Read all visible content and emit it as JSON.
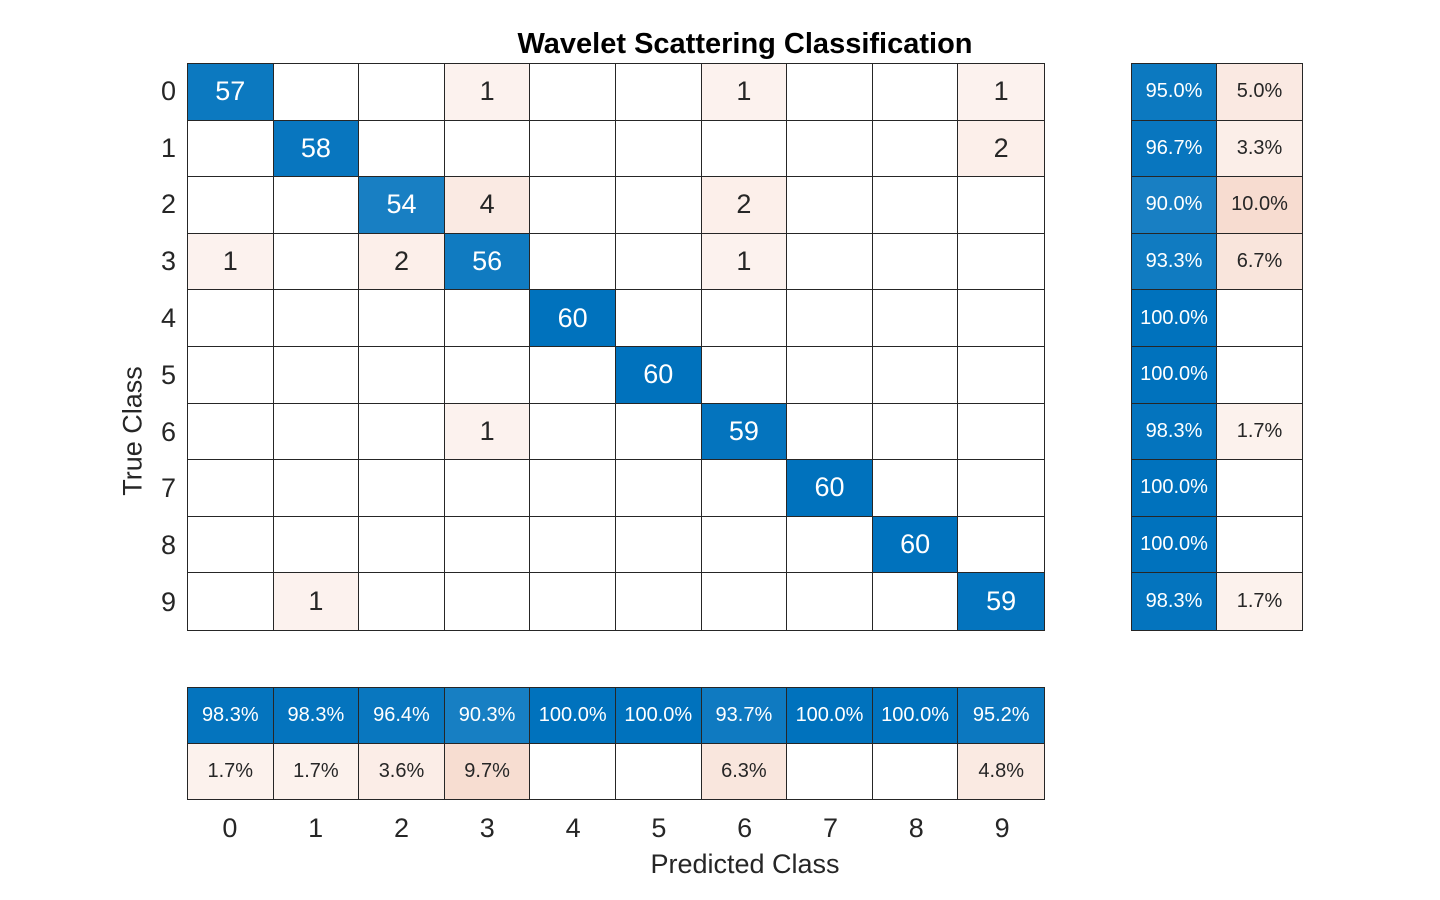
{
  "title": "Wavelet Scattering Classification",
  "chart_data": {
    "type": "heatmap",
    "subtype": "confusion-matrix",
    "title": "Wavelet Scattering Classification",
    "xlabel": "Predicted Class",
    "ylabel": "True Class",
    "classes": [
      "0",
      "1",
      "2",
      "3",
      "4",
      "5",
      "6",
      "7",
      "8",
      "9"
    ],
    "matrix": [
      [
        57,
        0,
        0,
        1,
        0,
        0,
        1,
        0,
        0,
        1
      ],
      [
        0,
        58,
        0,
        0,
        0,
        0,
        0,
        0,
        0,
        2
      ],
      [
        0,
        0,
        54,
        4,
        0,
        0,
        2,
        0,
        0,
        0
      ],
      [
        1,
        0,
        2,
        56,
        0,
        0,
        1,
        0,
        0,
        0
      ],
      [
        0,
        0,
        0,
        0,
        60,
        0,
        0,
        0,
        0,
        0
      ],
      [
        0,
        0,
        0,
        0,
        0,
        60,
        0,
        0,
        0,
        0
      ],
      [
        0,
        0,
        0,
        1,
        0,
        0,
        59,
        0,
        0,
        0
      ],
      [
        0,
        0,
        0,
        0,
        0,
        0,
        0,
        60,
        0,
        0
      ],
      [
        0,
        0,
        0,
        0,
        0,
        0,
        0,
        0,
        60,
        0
      ],
      [
        0,
        1,
        0,
        0,
        0,
        0,
        0,
        0,
        0,
        59
      ]
    ],
    "row_summary": [
      [
        "95.0%",
        "5.0%"
      ],
      [
        "96.7%",
        "3.3%"
      ],
      [
        "90.0%",
        "10.0%"
      ],
      [
        "93.3%",
        "6.7%"
      ],
      [
        "100.0%",
        ""
      ],
      [
        "100.0%",
        ""
      ],
      [
        "98.3%",
        "1.7%"
      ],
      [
        "100.0%",
        ""
      ],
      [
        "100.0%",
        ""
      ],
      [
        "98.3%",
        "1.7%"
      ]
    ],
    "col_summary": [
      [
        "98.3%",
        "98.3%",
        "96.4%",
        "90.3%",
        "100.0%",
        "100.0%",
        "93.7%",
        "100.0%",
        "100.0%",
        "95.2%"
      ],
      [
        "1.7%",
        "1.7%",
        "3.6%",
        "9.7%",
        "",
        "",
        "6.3%",
        "",
        "",
        "4.8%"
      ]
    ],
    "colors": {
      "diagonal": "#0072bd",
      "off_diagonal": "#d95319",
      "grid_line": "#262626",
      "text_dark": "#262626",
      "text_on_fill": "#ffffff",
      "background": "#ffffff"
    },
    "layout_hints": {
      "grid": "on",
      "row_summary_position": "right",
      "column_summary_position": "bottom"
    }
  }
}
